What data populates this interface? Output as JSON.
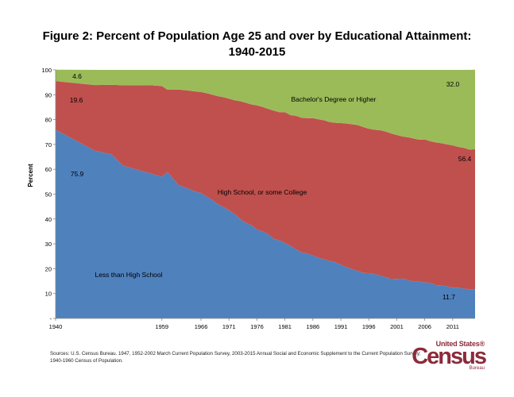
{
  "title_line1": "Figure 2: Percent of Population Age 25 and over by Educational Attainment:",
  "title_line2": "1940-2015",
  "sources_line1": "Sources:  U.S. Census Bureau. 1947, 1952-2002 March Current Population Survey, 2003-2015 Annual Social and Economic Supplement to the Current Population Survey;",
  "sources_line2": "1940-1960 Census of Population.",
  "logo": {
    "top": "United States®",
    "main": "Census",
    "bottom": "Bureau"
  },
  "colors": {
    "less_hs": "#4f81bd",
    "hs_some_college": "#c0504d",
    "bachelors": "#9bbb59"
  },
  "chart_data": {
    "type": "area",
    "stacked": true,
    "ylabel": "Percent",
    "ylim": [
      0,
      100
    ],
    "y_ticks": [
      "-",
      "10",
      "20",
      "30",
      "40",
      "50",
      "60",
      "70",
      "80",
      "90",
      "100"
    ],
    "x_ticks": [
      "1940",
      "1959",
      "1966",
      "1971",
      "1976",
      "1981",
      "1986",
      "1991",
      "1996",
      "2001",
      "2006",
      "2011"
    ],
    "categories": [
      "1940",
      "1947",
      "1950",
      "1952",
      "1957",
      "1959",
      "1960",
      "1962",
      "1964",
      "1965",
      "1966",
      "1967",
      "1968",
      "1969",
      "1970",
      "1971",
      "1972",
      "1973",
      "1974",
      "1975",
      "1976",
      "1977",
      "1978",
      "1979",
      "1980",
      "1981",
      "1982",
      "1983",
      "1984",
      "1985",
      "1986",
      "1987",
      "1988",
      "1989",
      "1990",
      "1991",
      "1992",
      "1993",
      "1994",
      "1995",
      "1996",
      "1997",
      "1998",
      "1999",
      "2000",
      "2001",
      "2002",
      "2003",
      "2004",
      "2005",
      "2006",
      "2007",
      "2008",
      "2009",
      "2010",
      "2011",
      "2012",
      "2013",
      "2014",
      "2015"
    ],
    "series": [
      {
        "name": "Less than High School",
        "values": [
          75.9,
          67.5,
          66.0,
          61.5,
          58.3,
          57.0,
          58.9,
          53.6,
          52.0,
          51.0,
          50.5,
          49.0,
          47.7,
          46.0,
          44.8,
          43.5,
          42.0,
          40.0,
          38.5,
          37.5,
          35.8,
          35.0,
          33.9,
          32.0,
          31.4,
          30.3,
          29.2,
          27.8,
          26.5,
          26.1,
          25.3,
          24.4,
          23.8,
          23.1,
          22.6,
          21.6,
          20.6,
          19.8,
          19.1,
          18.3,
          18.2,
          17.9,
          17.2,
          16.6,
          15.8,
          15.9,
          16.0,
          15.4,
          14.8,
          14.8,
          14.5,
          14.3,
          13.4,
          13.3,
          12.9,
          12.4,
          12.4,
          12.0,
          11.7,
          11.7
        ]
      },
      {
        "name": "High School, or some College",
        "values": [
          19.6,
          26.4,
          28.0,
          32.3,
          35.5,
          36.5,
          33.1,
          38.5,
          39.6,
          40.3,
          40.6,
          41.6,
          42.3,
          43.4,
          44.2,
          44.9,
          45.8,
          47.4,
          48.3,
          48.6,
          49.9,
          50.1,
          50.4,
          51.6,
          51.6,
          52.7,
          52.6,
          53.7,
          54.2,
          54.5,
          55.3,
          55.7,
          55.9,
          55.9,
          56.1,
          57.0,
          57.8,
          58.3,
          58.7,
          58.7,
          58.1,
          58.0,
          58.5,
          58.6,
          58.6,
          57.9,
          57.2,
          57.5,
          57.6,
          57.1,
          57.5,
          57.0,
          57.4,
          57.2,
          57.1,
          57.2,
          56.6,
          56.6,
          56.2,
          56.4
        ]
      },
      {
        "name": "Bachelor's Degree or Higher",
        "values": [
          4.6,
          6.1,
          6.0,
          6.2,
          6.2,
          6.5,
          8.0,
          7.9,
          8.4,
          8.7,
          8.9,
          9.4,
          10.0,
          10.6,
          11.0,
          11.6,
          12.2,
          12.6,
          13.2,
          13.9,
          14.3,
          14.9,
          15.7,
          16.4,
          17.0,
          17.0,
          18.2,
          18.5,
          19.3,
          19.4,
          19.4,
          19.9,
          20.3,
          21.0,
          21.3,
          21.4,
          21.6,
          21.9,
          22.2,
          23.0,
          23.7,
          24.1,
          24.3,
          24.8,
          25.6,
          26.2,
          26.8,
          27.1,
          27.6,
          28.1,
          28.0,
          28.7,
          29.2,
          29.5,
          30.0,
          30.4,
          31.0,
          31.4,
          32.1,
          32.0
        ]
      }
    ],
    "area_labels": [
      "Bachelor's Degree or Higher",
      "High School, or some College",
      "Less than High School"
    ],
    "data_labels": {
      "less_hs_1940": "75.9",
      "hs_1940": "19.6",
      "bachelors_1940": "4.6",
      "bachelors_2015": "32.0",
      "hs_2015": "56.4",
      "less_hs_2015": "11.7"
    }
  }
}
